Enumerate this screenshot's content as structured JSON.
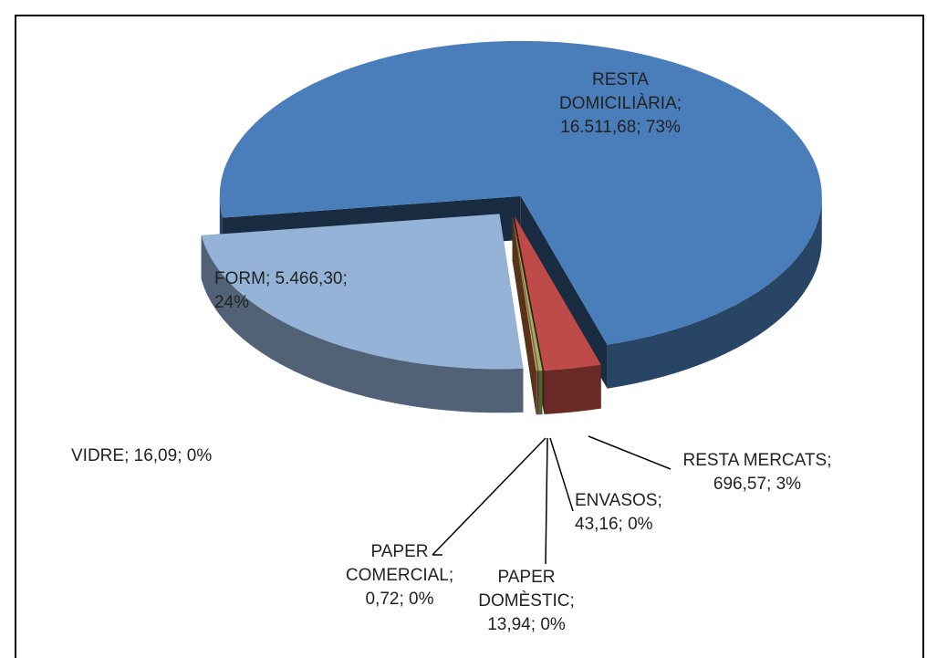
{
  "chart_data": {
    "type": "pie",
    "categories": [
      "RESTA DOMICILIÀRIA",
      "RESTA MERCATS",
      "ENVASOS",
      "PAPER DOMÈSTIC",
      "PAPER COMERCIAL",
      "VIDRE",
      "FORM"
    ],
    "values": [
      16511.68,
      696.57,
      43.16,
      13.94,
      0.72,
      16.09,
      5466.3
    ],
    "value_labels": [
      "16.511,68",
      "696,57",
      "43,16",
      "13,94",
      "0,72",
      "16,09",
      "5.466,30"
    ],
    "percents": [
      73,
      3,
      0,
      0,
      0,
      0,
      24
    ],
    "percent_labels": [
      "73%",
      "3%",
      "0%",
      "0%",
      "0%",
      "0%",
      "24%"
    ],
    "separator": "; ",
    "colors": [
      "#4a7ebb",
      "#be4b48",
      "#98b954",
      "#7d60a0",
      "#46aac5",
      "#f79646",
      "#95b3d7"
    ]
  }
}
